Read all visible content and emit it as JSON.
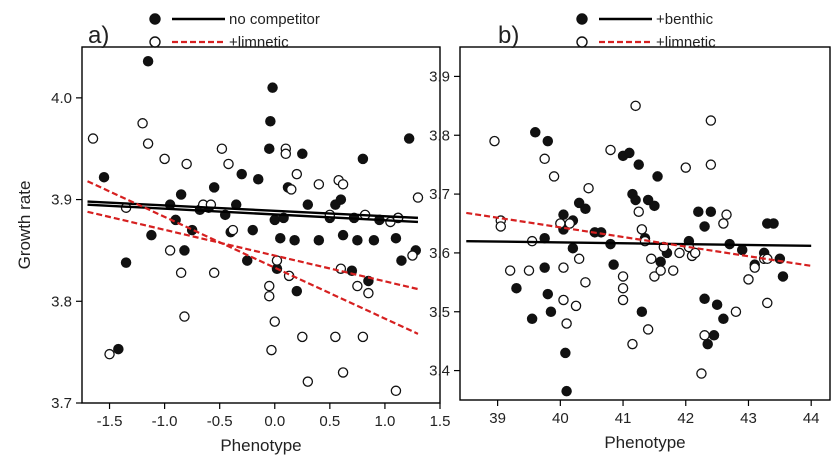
{
  "chart_data": [
    {
      "type": "scatter",
      "panel_label": "a)",
      "xlabel": "Phenotype",
      "ylabel": "Growth rate",
      "xlim": [
        -1.75,
        1.5
      ],
      "ylim": [
        3.7,
        4.05
      ],
      "xticks": [
        -1.5,
        -1.0,
        -0.5,
        0.0,
        0.5,
        1.0,
        1.5
      ],
      "xtick_labels": [
        "-1.5",
        "-1.0",
        "-0.5",
        "0.0",
        "0.5",
        "1.0",
        "1.5"
      ],
      "yticks": [
        3.7,
        3.8,
        3.9,
        4.0
      ],
      "ytick_labels": [
        "3.7",
        "3.8",
        "3.9",
        "4.0"
      ],
      "legend": [
        {
          "label": "no competitor",
          "marker": "filled",
          "line": "solid",
          "color": "#000000"
        },
        {
          "label": "+limnetic",
          "marker": "open",
          "line": "dashed",
          "color": "#d62020"
        }
      ],
      "legend_position": "top",
      "series": [
        {
          "name": "no competitor",
          "marker": "filled",
          "points": [
            [
              -1.55,
              3.922
            ],
            [
              -1.42,
              3.753
            ],
            [
              -1.35,
              3.838
            ],
            [
              -1.15,
              4.036
            ],
            [
              -1.12,
              3.865
            ],
            [
              -0.95,
              3.895
            ],
            [
              -0.9,
              3.88
            ],
            [
              -0.85,
              3.905
            ],
            [
              -0.82,
              3.85
            ],
            [
              -0.75,
              3.87
            ],
            [
              -0.68,
              3.89
            ],
            [
              -0.6,
              3.892
            ],
            [
              -0.55,
              3.912
            ],
            [
              -0.45,
              3.885
            ],
            [
              -0.4,
              3.868
            ],
            [
              -0.35,
              3.895
            ],
            [
              -0.3,
              3.925
            ],
            [
              -0.25,
              3.84
            ],
            [
              -0.2,
              3.87
            ],
            [
              -0.15,
              3.92
            ],
            [
              -0.05,
              3.95
            ],
            [
              -0.04,
              3.977
            ],
            [
              -0.02,
              4.01
            ],
            [
              0.0,
              3.88
            ],
            [
              0.02,
              3.832
            ],
            [
              0.05,
              3.862
            ],
            [
              0.08,
              3.882
            ],
            [
              0.12,
              3.912
            ],
            [
              0.18,
              3.86
            ],
            [
              0.2,
              3.81
            ],
            [
              0.25,
              3.945
            ],
            [
              0.3,
              3.895
            ],
            [
              0.4,
              3.86
            ],
            [
              0.5,
              3.882
            ],
            [
              0.55,
              3.895
            ],
            [
              0.6,
              3.9
            ],
            [
              0.62,
              3.865
            ],
            [
              0.7,
              3.83
            ],
            [
              0.72,
              3.882
            ],
            [
              0.75,
              3.86
            ],
            [
              0.8,
              3.94
            ],
            [
              0.85,
              3.82
            ],
            [
              0.9,
              3.86
            ],
            [
              0.95,
              3.88
            ],
            [
              1.1,
              3.862
            ],
            [
              1.12,
              3.882
            ],
            [
              1.15,
              3.84
            ],
            [
              1.22,
              3.96
            ],
            [
              1.28,
              3.85
            ]
          ]
        },
        {
          "name": "+limnetic",
          "marker": "open",
          "points": [
            [
              -1.65,
              3.96
            ],
            [
              -1.5,
              3.748
            ],
            [
              -1.35,
              3.892
            ],
            [
              -1.2,
              3.975
            ],
            [
              -1.15,
              3.955
            ],
            [
              -1.0,
              3.94
            ],
            [
              -0.95,
              3.85
            ],
            [
              -0.85,
              3.828
            ],
            [
              -0.82,
              3.785
            ],
            [
              -0.8,
              3.935
            ],
            [
              -0.65,
              3.895
            ],
            [
              -0.58,
              3.895
            ],
            [
              -0.55,
              3.828
            ],
            [
              -0.48,
              3.95
            ],
            [
              -0.42,
              3.935
            ],
            [
              -0.38,
              3.87
            ],
            [
              -0.05,
              3.815
            ],
            [
              -0.05,
              3.805
            ],
            [
              -0.03,
              3.752
            ],
            [
              0.0,
              3.78
            ],
            [
              0.02,
              3.84
            ],
            [
              0.1,
              3.95
            ],
            [
              0.1,
              3.945
            ],
            [
              0.13,
              3.825
            ],
            [
              0.15,
              3.91
            ],
            [
              0.2,
              3.925
            ],
            [
              0.25,
              3.765
            ],
            [
              0.3,
              3.721
            ],
            [
              0.4,
              3.915
            ],
            [
              0.5,
              3.885
            ],
            [
              0.55,
              3.765
            ],
            [
              0.58,
              3.919
            ],
            [
              0.6,
              3.832
            ],
            [
              0.62,
              3.915
            ],
            [
              0.62,
              3.73
            ],
            [
              0.75,
              3.815
            ],
            [
              0.8,
              3.765
            ],
            [
              0.82,
              3.885
            ],
            [
              0.85,
              3.808
            ],
            [
              1.05,
              3.878
            ],
            [
              1.1,
              3.712
            ],
            [
              1.12,
              3.882
            ],
            [
              1.25,
              3.845
            ],
            [
              1.3,
              3.902
            ]
          ]
        }
      ],
      "fit_lines": [
        {
          "name": "no competitor",
          "style": "solid",
          "color": "#000000",
          "x": [
            -1.7,
            1.3
          ],
          "y": [
            3.898,
            3.882
          ]
        },
        {
          "name": "no competitor",
          "style": "solid",
          "color": "#000000",
          "x": [
            -1.7,
            1.3
          ],
          "y": [
            3.895,
            3.878
          ]
        },
        {
          "name": "+limnetic",
          "style": "dashed",
          "color": "#d62020",
          "x": [
            -1.7,
            1.3
          ],
          "y": [
            3.918,
            3.768
          ]
        },
        {
          "name": "+limnetic",
          "style": "dashed",
          "color": "#d62020",
          "x": [
            -1.7,
            1.3
          ],
          "y": [
            3.888,
            3.812
          ]
        }
      ]
    },
    {
      "type": "scatter",
      "panel_label": "b)",
      "xlabel": "Phenotype",
      "ylabel": "",
      "xlim": [
        38.4,
        44.3
      ],
      "ylim": [
        3.35,
        3.95
      ],
      "xticks": [
        39,
        40,
        41,
        42,
        43,
        44
      ],
      "xtick_labels": [
        "39",
        "40",
        "41",
        "42",
        "43",
        "44"
      ],
      "yticks": [
        3.4,
        3.5,
        3.6,
        3.7,
        3.8,
        3.9
      ],
      "ytick_labels": [
        "3.4",
        "3.5",
        "3.6",
        "3.7",
        "3.8",
        "3.9"
      ],
      "legend": [
        {
          "label": "+benthic",
          "marker": "filled",
          "line": "solid",
          "color": "#000000"
        },
        {
          "label": "+limnetic",
          "marker": "open",
          "line": "dashed",
          "color": "#d62020"
        }
      ],
      "legend_position": "top",
      "series": [
        {
          "name": "+benthic",
          "marker": "filled",
          "points": [
            [
              39.3,
              3.54
            ],
            [
              39.55,
              3.488
            ],
            [
              39.6,
              3.805
            ],
            [
              39.75,
              3.625
            ],
            [
              39.75,
              3.575
            ],
            [
              39.8,
              3.79
            ],
            [
              39.8,
              3.53
            ],
            [
              39.85,
              3.5
            ],
            [
              40.05,
              3.665
            ],
            [
              40.05,
              3.64
            ],
            [
              40.08,
              3.43
            ],
            [
              40.1,
              3.365
            ],
            [
              40.2,
              3.608
            ],
            [
              40.2,
              3.655
            ],
            [
              40.3,
              3.685
            ],
            [
              40.4,
              3.675
            ],
            [
              40.55,
              3.635
            ],
            [
              40.65,
              3.635
            ],
            [
              40.8,
              3.615
            ],
            [
              40.85,
              3.58
            ],
            [
              41.0,
              3.765
            ],
            [
              41.1,
              3.77
            ],
            [
              41.15,
              3.7
            ],
            [
              41.2,
              3.69
            ],
            [
              41.25,
              3.75
            ],
            [
              41.3,
              3.5
            ],
            [
              41.35,
              3.625
            ],
            [
              41.4,
              3.69
            ],
            [
              41.5,
              3.68
            ],
            [
              41.55,
              3.73
            ],
            [
              41.6,
              3.585
            ],
            [
              41.7,
              3.6
            ],
            [
              42.05,
              3.62
            ],
            [
              42.2,
              3.67
            ],
            [
              42.3,
              3.645
            ],
            [
              42.3,
              3.522
            ],
            [
              42.35,
              3.445
            ],
            [
              42.4,
              3.67
            ],
            [
              42.45,
              3.46
            ],
            [
              42.5,
              3.512
            ],
            [
              42.6,
              3.488
            ],
            [
              42.7,
              3.615
            ],
            [
              42.9,
              3.605
            ],
            [
              43.1,
              3.58
            ],
            [
              43.25,
              3.6
            ],
            [
              43.3,
              3.65
            ],
            [
              43.4,
              3.65
            ],
            [
              43.5,
              3.59
            ],
            [
              43.55,
              3.56
            ]
          ]
        },
        {
          "name": "+limnetic",
          "marker": "open",
          "points": [
            [
              38.95,
              3.79
            ],
            [
              39.05,
              3.655
            ],
            [
              39.05,
              3.645
            ],
            [
              39.2,
              3.57
            ],
            [
              39.5,
              3.57
            ],
            [
              39.55,
              3.62
            ],
            [
              39.75,
              3.76
            ],
            [
              39.9,
              3.73
            ],
            [
              40.0,
              3.65
            ],
            [
              40.05,
              3.575
            ],
            [
              40.05,
              3.52
            ],
            [
              40.1,
              3.48
            ],
            [
              40.15,
              3.65
            ],
            [
              40.25,
              3.51
            ],
            [
              40.3,
              3.59
            ],
            [
              40.4,
              3.55
            ],
            [
              40.45,
              3.71
            ],
            [
              40.8,
              3.775
            ],
            [
              41.0,
              3.56
            ],
            [
              41.0,
              3.54
            ],
            [
              41.0,
              3.52
            ],
            [
              41.15,
              3.445
            ],
            [
              41.2,
              3.85
            ],
            [
              41.25,
              3.67
            ],
            [
              41.3,
              3.64
            ],
            [
              41.35,
              3.62
            ],
            [
              41.4,
              3.47
            ],
            [
              41.45,
              3.59
            ],
            [
              41.5,
              3.56
            ],
            [
              41.6,
              3.57
            ],
            [
              41.65,
              3.61
            ],
            [
              41.8,
              3.57
            ],
            [
              41.9,
              3.6
            ],
            [
              42.0,
              3.745
            ],
            [
              42.05,
              3.61
            ],
            [
              42.1,
              3.595
            ],
            [
              42.15,
              3.6
            ],
            [
              42.25,
              3.395
            ],
            [
              42.3,
              3.46
            ],
            [
              42.4,
              3.75
            ],
            [
              42.4,
              3.825
            ],
            [
              42.6,
              3.65
            ],
            [
              42.65,
              3.665
            ],
            [
              42.8,
              3.5
            ],
            [
              43.0,
              3.555
            ],
            [
              43.1,
              3.575
            ],
            [
              43.25,
              3.59
            ],
            [
              43.3,
              3.59
            ],
            [
              43.3,
              3.515
            ]
          ]
        }
      ],
      "fit_lines": [
        {
          "name": "+benthic",
          "style": "solid",
          "color": "#000000",
          "x": [
            38.5,
            44.0
          ],
          "y": [
            3.62,
            3.612
          ]
        },
        {
          "name": "+limnetic",
          "style": "dashed",
          "color": "#d62020",
          "x": [
            38.5,
            44.0
          ],
          "y": [
            3.668,
            3.578
          ]
        }
      ]
    }
  ]
}
